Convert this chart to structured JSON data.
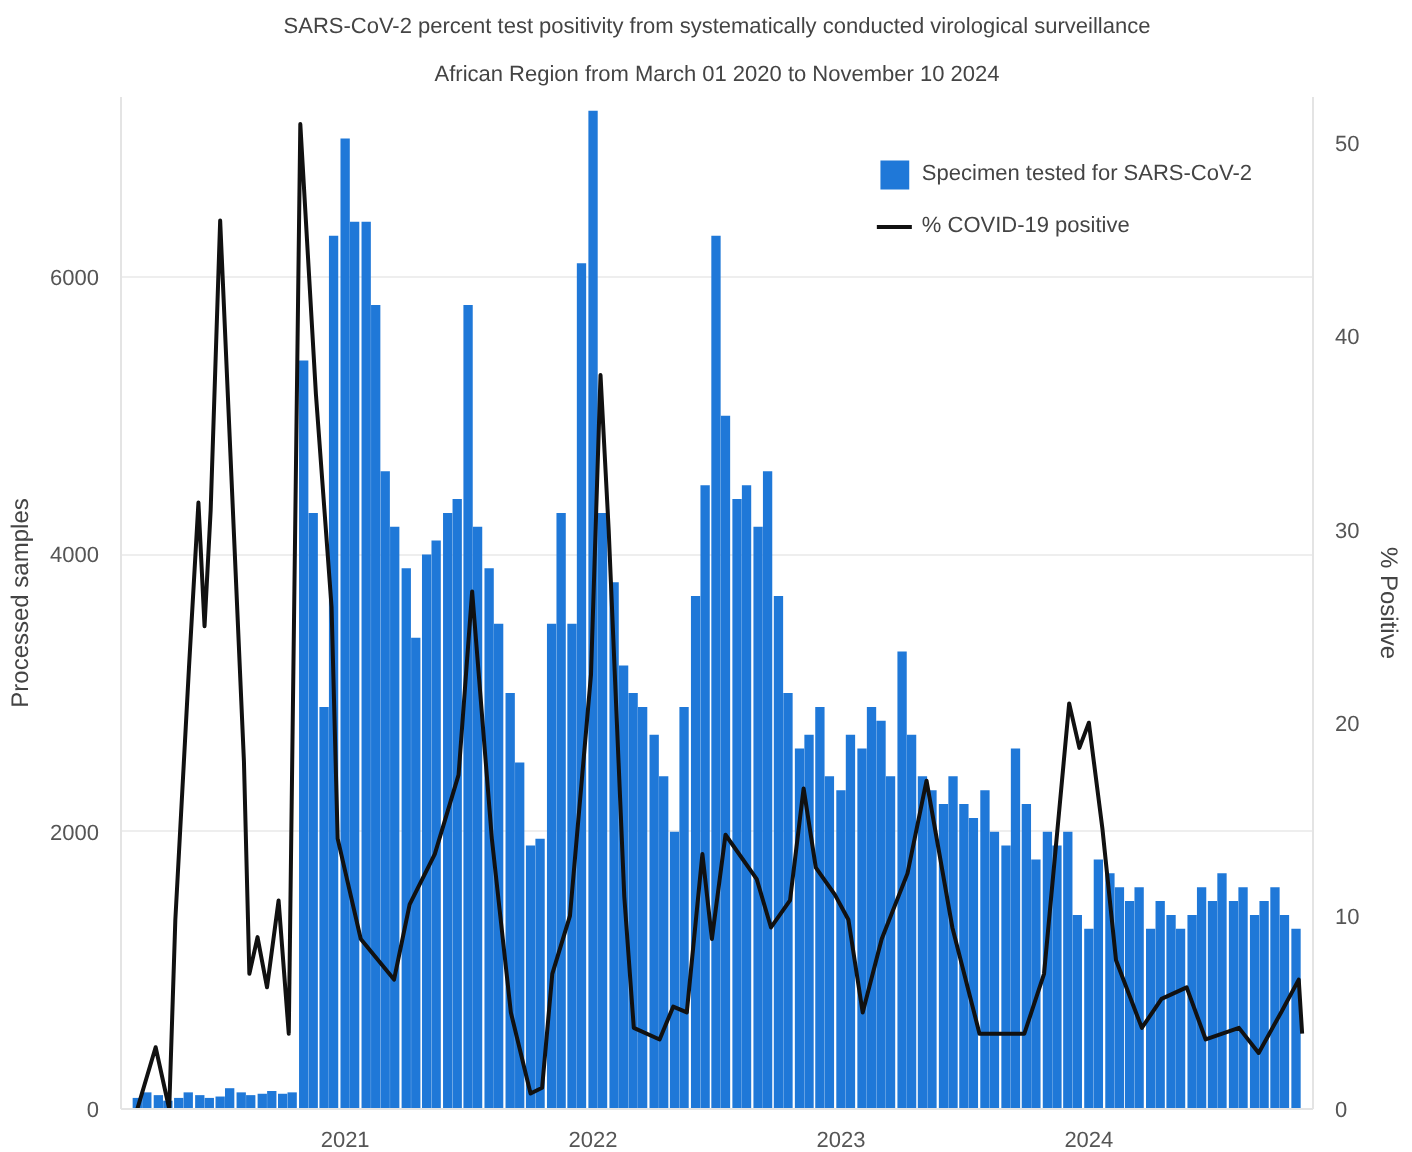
{
  "chart_data": {
    "type": "bar",
    "title": "SARS-CoV-2 percent test positivity from systematically conducted virological surveillance",
    "subtitle": "African Region from March 01 2020 to November 10 2024",
    "ylabel": "Processed samples",
    "y2label": "% Positive",
    "xlim": [
      "2020-02-06",
      "2024-11-26"
    ],
    "xticks": [
      "2021",
      "2022",
      "2023",
      "2024"
    ],
    "ylim": [
      0,
      7300
    ],
    "yticks": [
      0,
      2000,
      4000,
      6000
    ],
    "y2lim": [
      0,
      52.4
    ],
    "y2ticks": [
      0,
      10,
      20,
      30,
      40,
      50
    ],
    "grid": "y",
    "legend": "top right",
    "series": [
      {
        "name": "Specimen tested for SARS-CoV-2",
        "color": "#1f78d8",
        "x": [
          "2020-03-01",
          "2020-03-15",
          "2020-04-01",
          "2020-04-15",
          "2020-05-01",
          "2020-05-15",
          "2020-06-01",
          "2020-06-15",
          "2020-07-01",
          "2020-07-15",
          "2020-08-01",
          "2020-08-15",
          "2020-09-01",
          "2020-09-15",
          "2020-10-01",
          "2020-10-15",
          "2020-11-01",
          "2020-11-15",
          "2020-12-01",
          "2020-12-15",
          "2021-01-01",
          "2021-01-15",
          "2021-02-01",
          "2021-02-15",
          "2021-03-01",
          "2021-03-15",
          "2021-04-01",
          "2021-04-15",
          "2021-05-01",
          "2021-05-15",
          "2021-06-01",
          "2021-06-15",
          "2021-07-01",
          "2021-07-15",
          "2021-08-01",
          "2021-08-15",
          "2021-09-01",
          "2021-09-15",
          "2021-10-01",
          "2021-10-15",
          "2021-11-01",
          "2021-11-15",
          "2021-12-01",
          "2021-12-15",
          "2022-01-01",
          "2022-01-15",
          "2022-02-01",
          "2022-02-15",
          "2022-03-01",
          "2022-03-15",
          "2022-04-01",
          "2022-04-15",
          "2022-05-01",
          "2022-05-15",
          "2022-06-01",
          "2022-06-15",
          "2022-07-01",
          "2022-07-15",
          "2022-08-01",
          "2022-08-15",
          "2022-09-01",
          "2022-09-15",
          "2022-10-01",
          "2022-10-15",
          "2022-11-01",
          "2022-11-15",
          "2022-12-01",
          "2022-12-15",
          "2023-01-01",
          "2023-01-15",
          "2023-02-01",
          "2023-02-15",
          "2023-03-01",
          "2023-03-15",
          "2023-04-01",
          "2023-04-15",
          "2023-05-01",
          "2023-05-15",
          "2023-06-01",
          "2023-06-15",
          "2023-07-01",
          "2023-07-15",
          "2023-08-01",
          "2023-08-15",
          "2023-09-01",
          "2023-09-15",
          "2023-10-01",
          "2023-10-15",
          "2023-11-01",
          "2023-11-15",
          "2023-12-01",
          "2023-12-15",
          "2024-01-01",
          "2024-01-15",
          "2024-02-01",
          "2024-02-15",
          "2024-03-01",
          "2024-03-15",
          "2024-04-01",
          "2024-04-15",
          "2024-05-01",
          "2024-05-15",
          "2024-06-01",
          "2024-06-15",
          "2024-07-01",
          "2024-07-15",
          "2024-08-01",
          "2024-08-15",
          "2024-09-01",
          "2024-09-15",
          "2024-10-01",
          "2024-10-15",
          "2024-11-01"
        ],
        "values": [
          80,
          120,
          100,
          60,
          80,
          120,
          100,
          80,
          90,
          150,
          120,
          100,
          110,
          130,
          110,
          120,
          5400,
          4300,
          2900,
          6300,
          7000,
          6400,
          6400,
          5800,
          4600,
          4200,
          3900,
          3400,
          4000,
          4100,
          4300,
          4400,
          5800,
          4200,
          3900,
          3500,
          3000,
          2500,
          1900,
          1950,
          3500,
          4300,
          3500,
          6100,
          7200,
          4300,
          3800,
          3200,
          3000,
          2900,
          2700,
          2400,
          2000,
          2900,
          3700,
          4500,
          6300,
          5000,
          4400,
          4500,
          4200,
          4600,
          3700,
          3000,
          2600,
          2700,
          2900,
          2400,
          2300,
          2700,
          2600,
          2900,
          2800,
          2400,
          3300,
          2700,
          2400,
          2300,
          2200,
          2400,
          2200,
          2100,
          2300,
          2000,
          1900,
          2600,
          2200,
          1800,
          2000,
          1900,
          2000,
          1400,
          1300,
          1800,
          1700,
          1600,
          1500,
          1600,
          1300,
          1500,
          1400,
          1300,
          1400,
          1600,
          1500,
          1700,
          1500,
          1600,
          1400,
          1500,
          1600,
          1400,
          1300
        ]
      },
      {
        "name": "% COVID-19 positive",
        "type": "line",
        "axis": "y2",
        "color": "#111111",
        "line_style": "solid",
        "marker": "none",
        "x": [
          "2020-03-01",
          "2020-03-28",
          "2020-04-17",
          "2020-04-26",
          "2020-05-16",
          "2020-05-30",
          "2020-06-08",
          "2020-06-17",
          "2020-07-01",
          "2020-07-21",
          "2020-08-05",
          "2020-08-13",
          "2020-08-25",
          "2020-09-08",
          "2020-09-25",
          "2020-10-10",
          "2020-10-27",
          "2020-11-19",
          "2020-12-12",
          "2020-12-21",
          "2021-01-24",
          "2021-03-14",
          "2021-04-06",
          "2021-05-13",
          "2021-06-17",
          "2021-07-07",
          "2021-08-05",
          "2021-09-02",
          "2021-10-01",
          "2021-10-18",
          "2021-11-02",
          "2021-11-28",
          "2021-12-29",
          "2022-01-12",
          "2022-01-24",
          "2022-02-16",
          "2022-03-02",
          "2022-04-09",
          "2022-04-29",
          "2022-05-19",
          "2022-06-11",
          "2022-06-25",
          "2022-07-15",
          "2022-08-30",
          "2022-09-20",
          "2022-10-18",
          "2022-11-07",
          "2022-11-25",
          "2022-12-23",
          "2023-01-12",
          "2023-02-02",
          "2023-03-02",
          "2023-04-09",
          "2023-05-07",
          "2023-06-14",
          "2023-07-24",
          "2023-09-28",
          "2023-10-27",
          "2023-12-03",
          "2023-12-18",
          "2024-01-01",
          "2024-01-21",
          "2024-02-10",
          "2024-03-19",
          "2024-04-17",
          "2024-05-24",
          "2024-06-21",
          "2024-08-09",
          "2024-09-07",
          "2024-10-10",
          "2024-11-05",
          "2024-11-10"
        ],
        "values": [
          0,
          3.2,
          0,
          9.8,
          22.8,
          31.4,
          25,
          31,
          46,
          30,
          18,
          7,
          8.9,
          6.3,
          10.8,
          3.9,
          51,
          37,
          26,
          14,
          8.8,
          6.7,
          10.6,
          13.2,
          17.3,
          26.8,
          14,
          5,
          0.8,
          1.1,
          7,
          10,
          22.5,
          38,
          30,
          11,
          4.2,
          3.6,
          5.3,
          5,
          13.2,
          8.8,
          14.2,
          11.9,
          9.4,
          10.8,
          16.6,
          12.5,
          11.1,
          9.8,
          5,
          8.8,
          12.2,
          17,
          9.4,
          3.9,
          3.9,
          7,
          21,
          18.7,
          20,
          14.5,
          7.7,
          4.2,
          5.7,
          6.3,
          3.6,
          4.2,
          2.9,
          5,
          6.7,
          3.9
        ]
      }
    ]
  }
}
